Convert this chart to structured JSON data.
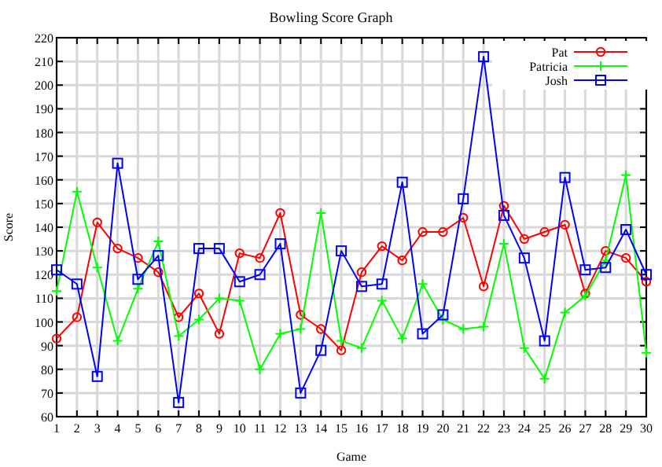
{
  "chart_data": {
    "type": "line",
    "title": "Bowling Score Graph",
    "xlabel": "Game",
    "ylabel": "Score",
    "x": [
      1,
      2,
      3,
      4,
      5,
      6,
      7,
      8,
      9,
      10,
      11,
      12,
      13,
      14,
      15,
      16,
      17,
      18,
      19,
      20,
      21,
      22,
      23,
      24,
      25,
      26,
      27,
      28,
      29,
      30
    ],
    "xlim": [
      1,
      30
    ],
    "xticks": [
      1,
      2,
      3,
      4,
      5,
      6,
      7,
      8,
      9,
      10,
      11,
      12,
      13,
      14,
      15,
      16,
      17,
      18,
      19,
      20,
      21,
      22,
      23,
      24,
      25,
      26,
      27,
      28,
      29,
      30
    ],
    "ylim": [
      60,
      220
    ],
    "yticks": [
      60,
      70,
      80,
      90,
      100,
      110,
      120,
      130,
      140,
      150,
      160,
      170,
      180,
      190,
      200,
      210,
      220
    ],
    "grid": true,
    "legend": "top right",
    "series": [
      {
        "name": "Pat",
        "color": "#ff0000",
        "marker": "circle",
        "values": [
          93,
          102,
          142,
          131,
          127,
          121,
          102,
          112,
          95,
          129,
          127,
          146,
          103,
          97,
          88,
          121,
          132,
          126,
          138,
          138,
          144,
          115,
          149,
          135,
          138,
          141,
          112,
          130,
          127,
          117
        ]
      },
      {
        "name": "Patricia",
        "color": "#00ff00",
        "marker": "cross",
        "values": [
          113,
          155,
          123,
          92,
          114,
          134,
          94,
          101,
          110,
          109,
          80,
          95,
          97,
          146,
          92,
          89,
          109,
          93,
          116,
          101,
          97,
          98,
          133,
          89,
          76,
          104,
          111,
          126,
          162,
          87
        ]
      },
      {
        "name": "Josh",
        "color": "#0000ff",
        "marker": "square",
        "values": [
          122,
          116,
          77,
          167,
          118,
          128,
          66,
          131,
          131,
          117,
          120,
          133,
          70,
          88,
          130,
          115,
          116,
          159,
          95,
          103,
          152,
          212,
          145,
          127,
          92,
          161,
          122,
          123,
          139,
          120
        ]
      }
    ]
  }
}
